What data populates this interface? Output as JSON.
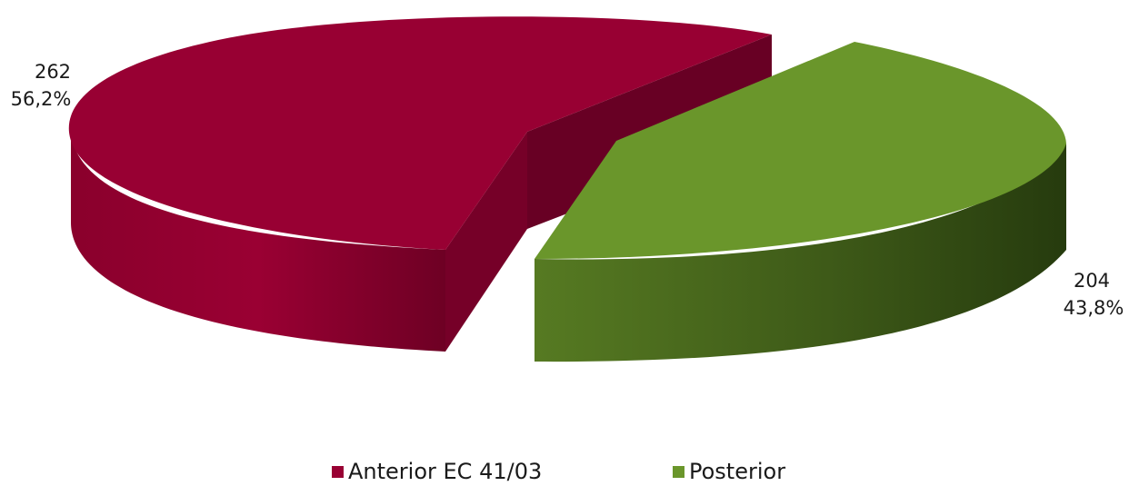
{
  "chart_data": {
    "type": "pie",
    "title": "",
    "categories": [
      "Anterior EC 41/03",
      "Posterior"
    ],
    "values": [
      262,
      204
    ],
    "percent_labels": [
      "56,2%",
      "43,8%"
    ],
    "value_labels": [
      "262",
      "204"
    ],
    "colors": [
      "#980033",
      "#6a962b"
    ],
    "legend_position": "bottom",
    "style": "3d-exploded"
  },
  "legend": {
    "items": [
      {
        "label": "Anterior EC 41/03",
        "color": "#980033"
      },
      {
        "label": "Posterior",
        "color": "#6a962b"
      }
    ]
  }
}
